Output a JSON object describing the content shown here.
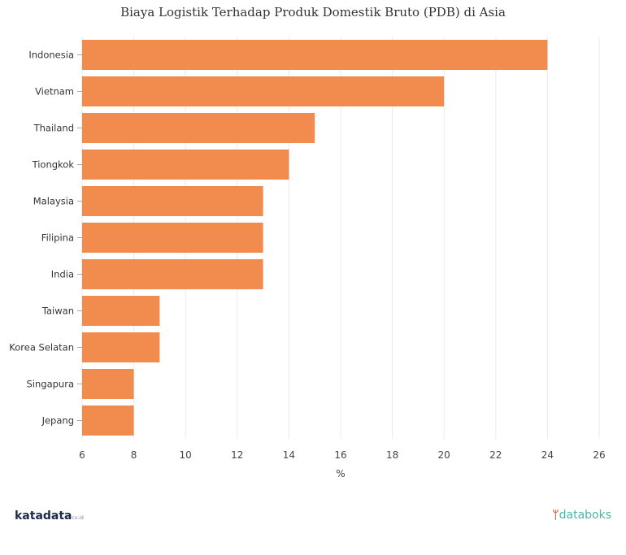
{
  "chart_data": {
    "type": "bar",
    "orientation": "horizontal",
    "title": "Biaya Logistik Terhadap Produk Domestik Bruto (PDB) di Asia",
    "categories": [
      "Indonesia",
      "Vietnam",
      "Thailand",
      "Tiongkok",
      "Malaysia",
      "Filipina",
      "India",
      "Taiwan",
      "Korea Selatan",
      "Singapura",
      "Jepang"
    ],
    "values": [
      24,
      20,
      15,
      14,
      13,
      13,
      13,
      9,
      9,
      8,
      8
    ],
    "xlabel": "%",
    "ylabel": "",
    "xlim": [
      6,
      26
    ],
    "xticks": [
      6,
      8,
      10,
      12,
      14,
      16,
      18,
      20,
      22,
      24,
      26
    ],
    "grid": true,
    "bar_color": "#F28B4E"
  },
  "branding": {
    "left": "katadata",
    "left_suffix": "co.id",
    "right": "databoks"
  }
}
